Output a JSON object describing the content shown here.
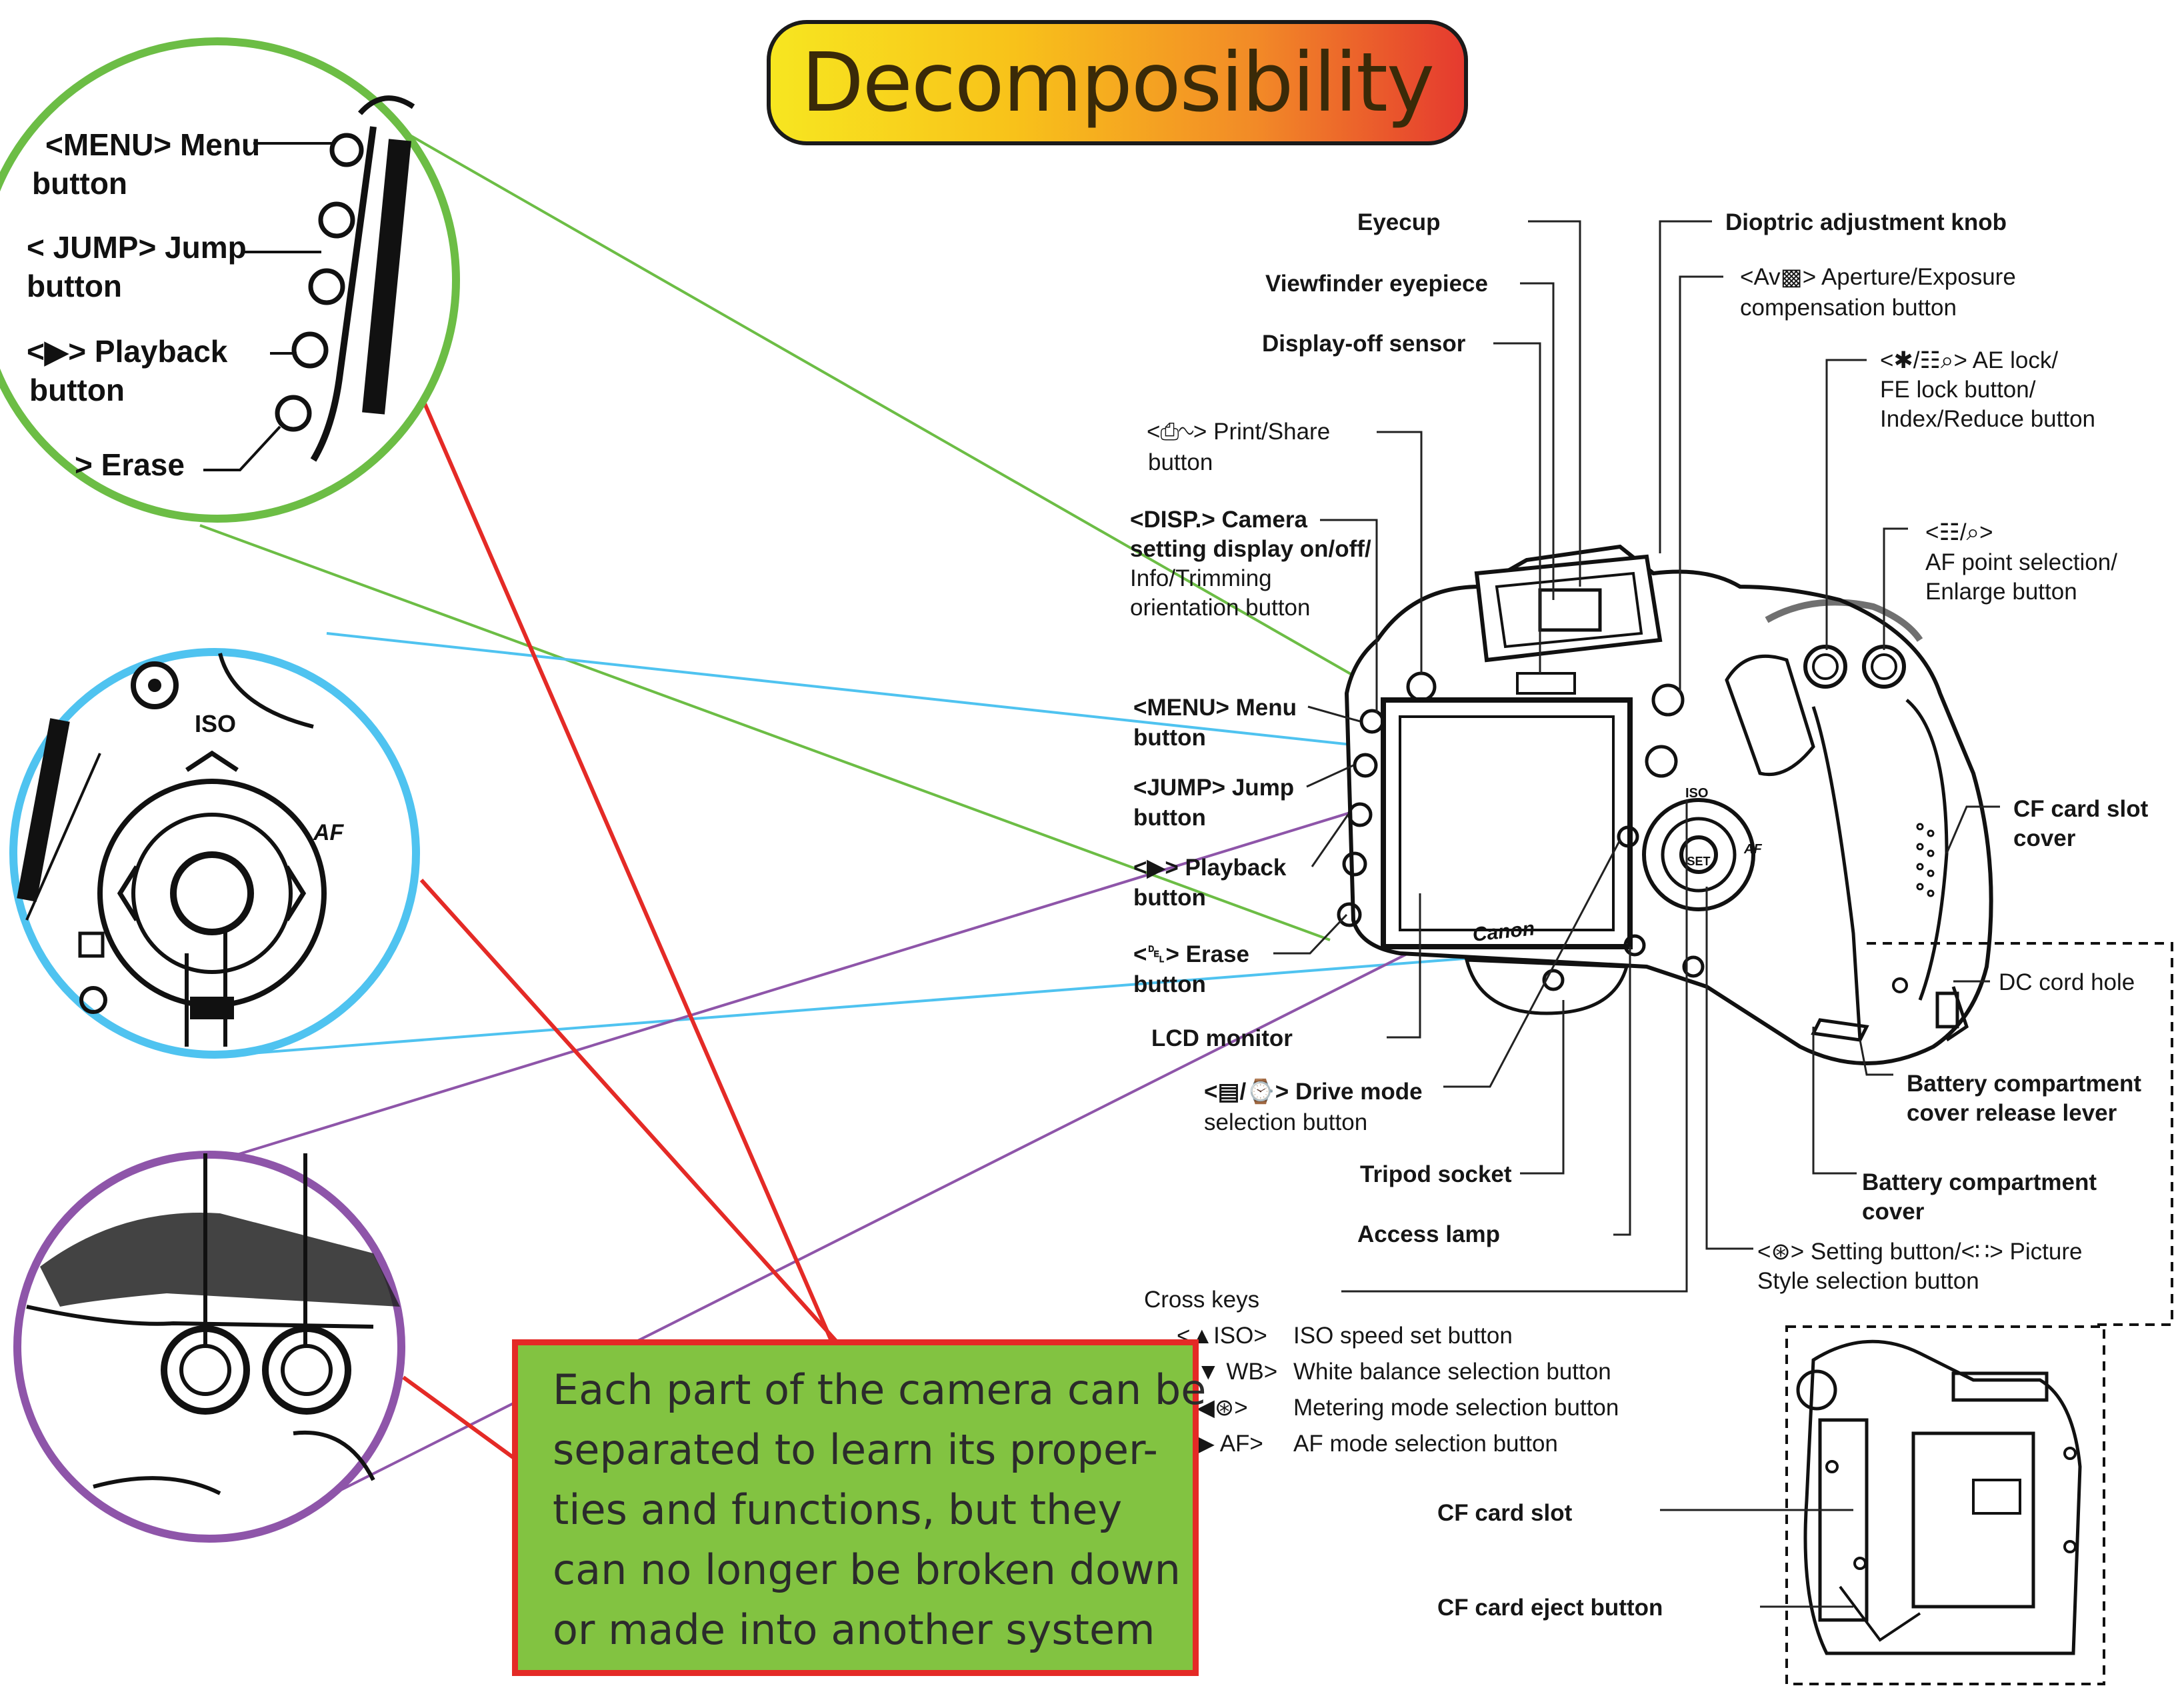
{
  "title": "Decomposibility",
  "colors": {
    "zoom_menu": "#6cbd45",
    "zoom_crosskeys": "#4fc3f0",
    "zoom_aelock": "#8e55a9",
    "connector_red": "#e42a26",
    "callout_fill": "#82c341"
  },
  "callout": {
    "lines": [
      "Each part of the camera can be",
      "separated to learn its proper-",
      "ties and functions, but they",
      "can no longer be broken down",
      "or made into another system"
    ]
  },
  "zoom_menu": {
    "menu": "<MENU> Menu",
    "menu2": "button",
    "jump": "< JUMP> Jump",
    "jump2": "button",
    "play": "<▶> Playback",
    "play2": "button",
    "erase": "> Erase"
  },
  "labels": {
    "eyecup": "Eyecup",
    "dioptric": "Dioptric adjustment knob",
    "viewfinder": "Viewfinder eyepiece",
    "aperture1": "<Av▩> Aperture/Exposure",
    "aperture2": "compensation button",
    "display_off": "Display-off sensor",
    "ae_lock1": "<✱/☷⌕> AE lock/",
    "ae_lock2": "FE lock button/",
    "ae_lock3": "Index/Reduce button",
    "print1": "<⎙∿> Print/Share",
    "print2": "button",
    "af_point1": "<☷/⌕>",
    "af_point2": "AF point selection/",
    "af_point3": "Enlarge button",
    "disp1": "<DISP.> Camera",
    "disp2": "setting display on/off/",
    "disp3": "Info/Trimming",
    "disp4": "orientation button",
    "menu1": "<MENU> Menu",
    "menu2": "button",
    "jump1": "<JUMP> Jump",
    "jump2": "button",
    "cf_cover1": "CF card slot",
    "cf_cover2": "cover",
    "playback1": "<▶> Playback",
    "playback2": "button",
    "erase1": "<␡> Erase",
    "erase2": "button",
    "dc_cord": "DC cord hole",
    "lcd": "LCD monitor",
    "batt_lever1": "Battery compartment",
    "batt_lever2": "cover release lever",
    "drive1": "<▤/⌚> Drive mode",
    "drive2": "selection button",
    "tripod": "Tripod socket",
    "batt_cover1": "Battery compartment",
    "batt_cover2": "cover",
    "access": "Access lamp",
    "setting1": "<⊛> Setting button/<∷> Picture",
    "setting2": "Style selection button",
    "cross_keys": "Cross keys",
    "cf_slot": "CF card slot",
    "cf_eject": "CF card eject button"
  },
  "cross_keys": [
    {
      "key": "<▲ISO>",
      "desc": "ISO speed set button"
    },
    {
      "key": "▼ WB>",
      "desc": "White balance selection button"
    },
    {
      "key": "◀⊛>",
      "desc": "Metering mode selection button"
    },
    {
      "key": "▶ AF>",
      "desc": "AF mode selection button"
    }
  ],
  "camera_text": {
    "brand": "Canon",
    "iso": "ISO",
    "af": "AF",
    "dial_label": "SET"
  }
}
